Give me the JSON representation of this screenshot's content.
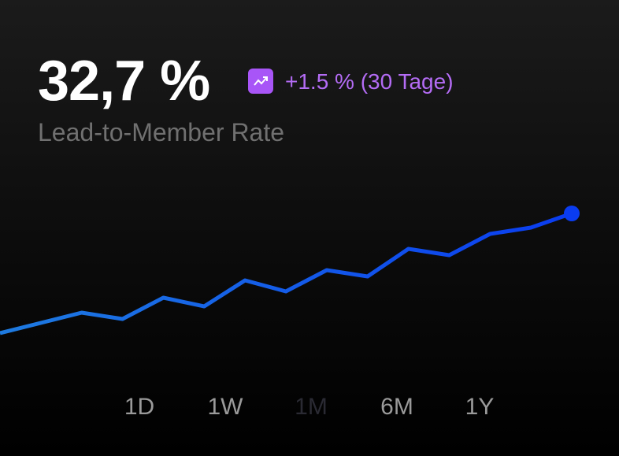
{
  "metric": {
    "value": "32,7 %",
    "change": "+1.5 % (30 Tage)",
    "label": "Lead-to-Member Rate"
  },
  "chart_data": {
    "type": "line",
    "values": [
      27,
      40,
      53,
      45,
      72,
      61,
      94,
      80,
      107,
      99,
      134,
      126,
      153,
      161,
      179
    ],
    "ylim": [
      0,
      250
    ],
    "color": "#0a3cf0"
  },
  "ranges": [
    {
      "label": "1D",
      "selected": false
    },
    {
      "label": "1W",
      "selected": false
    },
    {
      "label": "1M",
      "selected": true
    },
    {
      "label": "6M",
      "selected": false
    },
    {
      "label": "1Y",
      "selected": false
    }
  ]
}
